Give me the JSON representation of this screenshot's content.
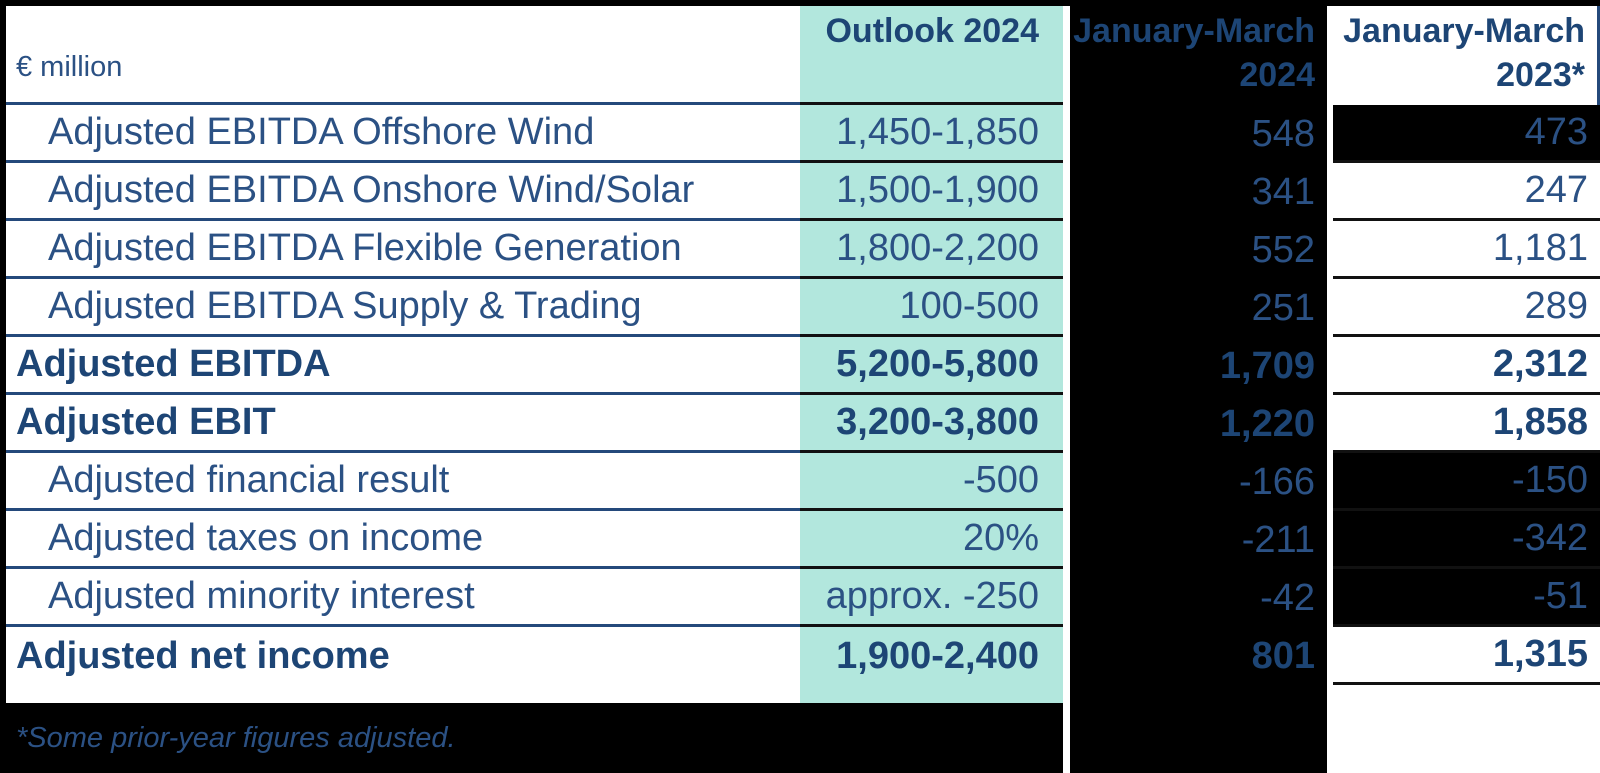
{
  "table": {
    "unit_label": "€ million",
    "columns": [
      {
        "label": "Outlook 2024"
      },
      {
        "label": "January-March 2024"
      },
      {
        "label": "January-March 2023*"
      }
    ],
    "rows": [
      {
        "label": "Adjusted EBITDA Offshore Wind",
        "outlook": "1,450-1,850",
        "jm2024": "548",
        "jm2023": "473",
        "bold": false,
        "dark2023": true,
        "last": false
      },
      {
        "label": "Adjusted EBITDA Onshore Wind/Solar",
        "outlook": "1,500-1,900",
        "jm2024": "341",
        "jm2023": "247",
        "bold": false,
        "dark2023": false,
        "last": false
      },
      {
        "label": "Adjusted EBITDA Flexible Generation",
        "outlook": "1,800-2,200",
        "jm2024": "552",
        "jm2023": "1,181",
        "bold": false,
        "dark2023": false,
        "last": false
      },
      {
        "label": "Adjusted EBITDA Supply & Trading",
        "outlook": "100-500",
        "jm2024": "251",
        "jm2023": "289",
        "bold": false,
        "dark2023": false,
        "last": false
      },
      {
        "label": "Adjusted EBITDA",
        "outlook": "5,200-5,800",
        "jm2024": "1,709",
        "jm2023": "2,312",
        "bold": true,
        "dark2023": false,
        "last": false
      },
      {
        "label": "Adjusted EBIT",
        "outlook": "3,200-3,800",
        "jm2024": "1,220",
        "jm2023": "1,858",
        "bold": true,
        "dark2023": false,
        "last": false
      },
      {
        "label": "Adjusted financial result",
        "outlook": "-500",
        "jm2024": "-166",
        "jm2023": "-150",
        "bold": false,
        "dark2023": true,
        "last": false
      },
      {
        "label": "Adjusted taxes on income",
        "outlook": "20%",
        "jm2024": "-211",
        "jm2023": "-342",
        "bold": false,
        "dark2023": true,
        "last": false
      },
      {
        "label": "Adjusted minority interest",
        "outlook": "approx. -250",
        "jm2024": "-42",
        "jm2023": "-51",
        "bold": false,
        "dark2023": true,
        "last": false
      },
      {
        "label": "Adjusted net income",
        "outlook": "1,900-2,400",
        "jm2024": "801",
        "jm2023": "1,315",
        "bold": true,
        "dark2023": false,
        "last": true
      }
    ],
    "footnote": "*Some prior-year figures adjusted."
  },
  "colors": {
    "outlook_column_bg": "#b2e7dd",
    "highlight_bg": "#000000",
    "text_regular": "#2b5184",
    "text_bold": "#1d4575",
    "divider_navy": "#24497b",
    "divider_dark": "#111111"
  }
}
